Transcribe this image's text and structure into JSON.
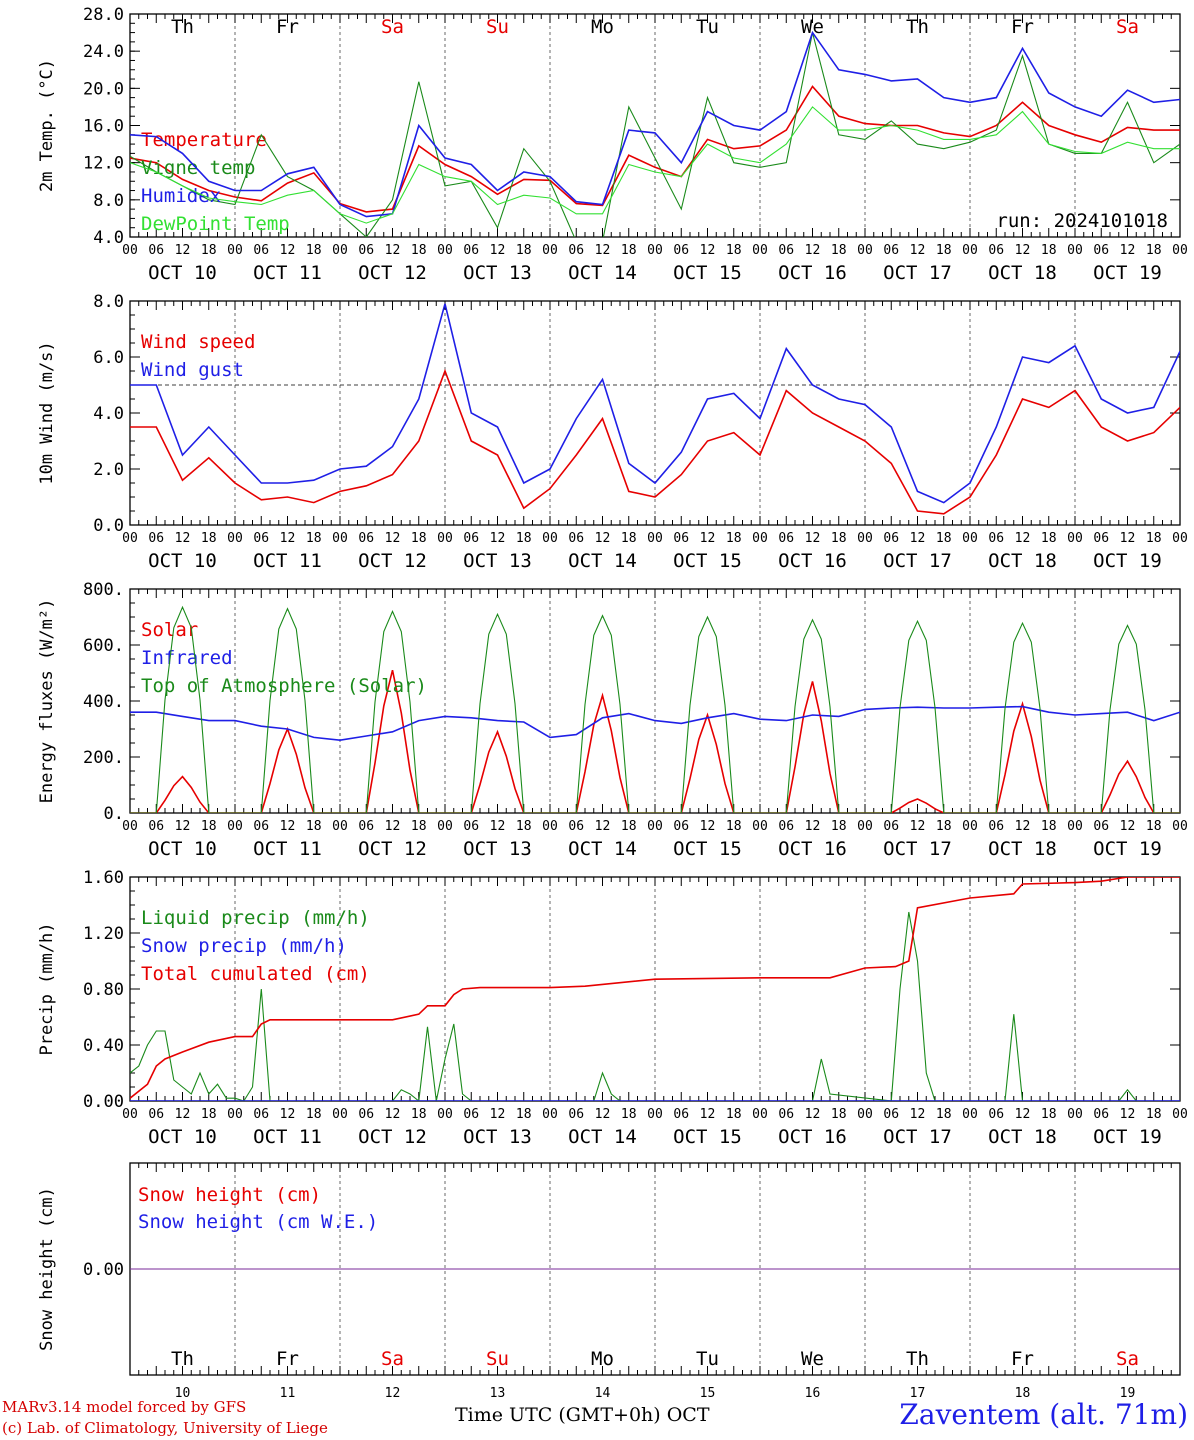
{
  "run_label": "run: 2024101018",
  "x_axis_title": "Time UTC (GMT+0h) OCT",
  "station": "Zaventem (alt. 71m)",
  "credits": [
    "MARv3.14 model forced by GFS",
    "(c) Lab. of Climatology, University of Liege"
  ],
  "hour_ticks": [
    "00",
    "06",
    "12",
    "18"
  ],
  "date_labels": [
    "OCT 10",
    "OCT 11",
    "OCT 12",
    "OCT 13",
    "OCT 14",
    "OCT 15",
    "OCT 16",
    "OCT 17",
    "OCT 18",
    "OCT 19"
  ],
  "day_numbers": [
    "10",
    "11",
    "12",
    "13",
    "14",
    "15",
    "16",
    "17",
    "18",
    "19"
  ],
  "weekdays": [
    {
      "label": "Th",
      "weekend": false
    },
    {
      "label": "Fr",
      "weekend": false
    },
    {
      "label": "Sa",
      "weekend": true
    },
    {
      "label": "Su",
      "weekend": true
    },
    {
      "label": "Mo",
      "weekend": false
    },
    {
      "label": "Tu",
      "weekend": false
    },
    {
      "label": "We",
      "weekend": false
    },
    {
      "label": "Th",
      "weekend": false
    },
    {
      "label": "Fr",
      "weekend": false
    },
    {
      "label": "Sa",
      "weekend": true
    }
  ],
  "colors": {
    "red": "#e60000",
    "dark_green": "#1a8a1a",
    "blue": "#1f1fe6",
    "light_green": "#33e033",
    "weekend": "#e60000",
    "snow_line": "#7a2a9a"
  },
  "chart_data": [
    {
      "type": "line",
      "ylabel": "2m Temp. (°C)",
      "ylim": [
        4.0,
        28.0
      ],
      "yticks": [
        "4.0",
        "8.0",
        "12.0",
        "16.0",
        "20.0",
        "24.0",
        "28.0"
      ],
      "x_unit": "hours since OCT 10 00 UTC",
      "xlim": [
        0,
        240
      ],
      "series": [
        {
          "name": "Temperature",
          "color": "#e60000",
          "x": [
            0,
            6,
            12,
            18,
            24,
            30,
            36,
            42,
            48,
            54,
            60,
            66,
            72,
            78,
            84,
            90,
            96,
            102,
            108,
            114,
            120,
            126,
            132,
            138,
            144,
            150,
            156,
            162,
            168,
            174,
            180,
            186,
            192,
            198,
            204,
            210,
            216,
            222,
            228,
            234,
            240
          ],
          "y": [
            12.5,
            12.0,
            10.2,
            9.0,
            8.3,
            7.9,
            9.8,
            10.9,
            7.6,
            6.7,
            7.0,
            13.8,
            11.8,
            10.5,
            8.6,
            10.2,
            10.1,
            7.6,
            7.4,
            12.8,
            11.5,
            10.5,
            14.5,
            13.5,
            13.8,
            15.5,
            20.2,
            17.0,
            16.2,
            16.0,
            16.0,
            15.2,
            14.8,
            16.0,
            18.5,
            16.0,
            15.0,
            14.2,
            15.8,
            15.5,
            15.5
          ]
        },
        {
          "name": "Vigne temp",
          "color": "#1a8a1a",
          "x": [
            0,
            6,
            12,
            18,
            24,
            30,
            36,
            42,
            48,
            54,
            60,
            66,
            72,
            78,
            84,
            90,
            96,
            102,
            108,
            114,
            120,
            126,
            132,
            138,
            144,
            150,
            156,
            162,
            168,
            174,
            180,
            186,
            192,
            198,
            204,
            210,
            216,
            222,
            228,
            234,
            240
          ],
          "y": [
            12.7,
            11.0,
            9.5,
            8.0,
            7.5,
            15.0,
            10.5,
            9.0,
            6.5,
            4.0,
            8.0,
            20.7,
            9.5,
            10.0,
            5.0,
            13.5,
            10.0,
            3.5,
            3.5,
            18.0,
            12.5,
            7.0,
            19.0,
            12.0,
            11.5,
            12.0,
            26.0,
            15.0,
            14.5,
            16.5,
            14.0,
            13.5,
            14.2,
            15.5,
            23.5,
            14.0,
            13.0,
            13.0,
            18.5,
            12.0,
            14.0
          ]
        },
        {
          "name": "Humidex",
          "color": "#1f1fe6",
          "x": [
            0,
            6,
            12,
            18,
            24,
            30,
            36,
            42,
            48,
            54,
            60,
            66,
            72,
            78,
            84,
            90,
            96,
            102,
            108,
            114,
            120,
            126,
            132,
            138,
            144,
            150,
            156,
            162,
            168,
            174,
            180,
            186,
            192,
            198,
            204,
            210,
            216,
            222,
            228,
            234,
            240
          ],
          "y": [
            15.0,
            14.8,
            13.0,
            10.0,
            9.0,
            9.0,
            10.8,
            11.5,
            7.5,
            6.2,
            6.5,
            16.0,
            12.5,
            11.8,
            9.0,
            11.0,
            10.5,
            7.8,
            7.5,
            15.5,
            15.2,
            12.0,
            17.5,
            16.0,
            15.5,
            17.5,
            26.0,
            22.0,
            21.5,
            20.8,
            21.0,
            19.0,
            18.5,
            19.0,
            24.3,
            19.5,
            18.0,
            17.0,
            19.8,
            18.5,
            18.8
          ]
        },
        {
          "name": "DewPoint Temp",
          "color": "#33e033",
          "x": [
            0,
            6,
            12,
            18,
            24,
            30,
            36,
            42,
            48,
            54,
            60,
            66,
            72,
            78,
            84,
            90,
            96,
            102,
            108,
            114,
            120,
            126,
            132,
            138,
            144,
            150,
            156,
            162,
            168,
            174,
            180,
            186,
            192,
            198,
            204,
            210,
            216,
            222,
            228,
            234,
            240
          ],
          "y": [
            12.0,
            11.0,
            9.5,
            8.2,
            7.8,
            7.5,
            8.5,
            9.0,
            6.5,
            5.5,
            6.5,
            11.8,
            10.5,
            10.0,
            7.5,
            8.5,
            8.2,
            6.5,
            6.5,
            11.8,
            11.0,
            10.5,
            14.0,
            12.5,
            12.0,
            14.0,
            18.0,
            15.5,
            15.5,
            16.0,
            15.5,
            14.5,
            14.5,
            15.0,
            17.5,
            14.0,
            13.2,
            13.0,
            14.2,
            13.5,
            13.5
          ]
        }
      ]
    },
    {
      "type": "line",
      "ylabel": "10m Wind (m/s)",
      "ylim": [
        0.0,
        8.0
      ],
      "yticks": [
        "0.0",
        "2.0",
        "4.0",
        "6.0",
        "8.0"
      ],
      "reference_line": 5.0,
      "x_unit": "hours since OCT 10 00 UTC",
      "xlim": [
        0,
        240
      ],
      "series": [
        {
          "name": "Wind speed",
          "color": "#e60000",
          "x": [
            0,
            6,
            12,
            18,
            24,
            30,
            36,
            42,
            48,
            54,
            60,
            66,
            72,
            78,
            84,
            90,
            96,
            102,
            108,
            114,
            120,
            126,
            132,
            138,
            144,
            150,
            156,
            162,
            168,
            174,
            180,
            186,
            192,
            198,
            204,
            210,
            216,
            222,
            228,
            234,
            240
          ],
          "y": [
            3.5,
            3.5,
            1.6,
            2.4,
            1.5,
            0.9,
            1.0,
            0.8,
            1.2,
            1.4,
            1.8,
            3.0,
            5.5,
            3.0,
            2.5,
            0.6,
            1.3,
            2.5,
            3.8,
            1.2,
            1.0,
            1.8,
            3.0,
            3.3,
            2.5,
            4.8,
            4.0,
            3.5,
            3.0,
            2.2,
            0.5,
            0.4,
            1.0,
            2.5,
            4.5,
            4.2,
            4.8,
            3.5,
            3.0,
            3.3,
            4.2
          ]
        },
        {
          "name": "Wind gust",
          "color": "#1f1fe6",
          "x": [
            0,
            6,
            12,
            18,
            24,
            30,
            36,
            42,
            48,
            54,
            60,
            66,
            72,
            78,
            84,
            90,
            96,
            102,
            108,
            114,
            120,
            126,
            132,
            138,
            144,
            150,
            156,
            162,
            168,
            174,
            180,
            186,
            192,
            198,
            204,
            210,
            216,
            222,
            228,
            234,
            240
          ],
          "y": [
            5.0,
            5.0,
            2.5,
            3.5,
            2.5,
            1.5,
            1.5,
            1.6,
            2.0,
            2.1,
            2.8,
            4.5,
            7.9,
            4.0,
            3.5,
            1.5,
            2.0,
            3.8,
            5.2,
            2.2,
            1.5,
            2.6,
            4.5,
            4.7,
            3.8,
            6.3,
            5.0,
            4.5,
            4.3,
            3.5,
            1.2,
            0.8,
            1.5,
            3.5,
            6.0,
            5.8,
            6.4,
            4.5,
            4.0,
            4.2,
            6.2
          ]
        }
      ]
    },
    {
      "type": "line",
      "ylabel": "Energy fluxes (W/m²)",
      "ylim": [
        0,
        800
      ],
      "yticks": [
        "0.",
        "200.",
        "400.",
        "600.",
        "800."
      ],
      "x_unit": "hours since OCT 10 00 UTC",
      "xlim": [
        0,
        240
      ],
      "series": [
        {
          "name": "Solar",
          "color": "#e60000",
          "type": "diurnal",
          "daily_peak": [
            130,
            300,
            510,
            290,
            420,
            350,
            470,
            50,
            390,
            185
          ]
        },
        {
          "name": "Infrared",
          "color": "#1f1fe6",
          "x": [
            0,
            6,
            12,
            18,
            24,
            30,
            36,
            42,
            48,
            54,
            60,
            66,
            72,
            78,
            84,
            90,
            96,
            102,
            108,
            114,
            120,
            126,
            132,
            138,
            144,
            150,
            156,
            162,
            168,
            174,
            180,
            186,
            192,
            198,
            204,
            210,
            216,
            222,
            228,
            234,
            240
          ],
          "y": [
            360,
            360,
            345,
            330,
            330,
            310,
            300,
            270,
            260,
            275,
            290,
            330,
            345,
            340,
            330,
            325,
            270,
            280,
            340,
            355,
            330,
            320,
            340,
            355,
            335,
            330,
            350,
            345,
            370,
            375,
            378,
            375,
            375,
            378,
            380,
            360,
            350,
            355,
            360,
            330,
            360
          ]
        },
        {
          "name": "Top of Atmosphere (Solar)",
          "color": "#1a8a1a",
          "type": "diurnal",
          "daily_peak": [
            735,
            730,
            720,
            710,
            705,
            700,
            690,
            685,
            678,
            670
          ]
        }
      ]
    },
    {
      "type": "line",
      "ylabel": "Precip (mm/h)",
      "ylim": [
        0.0,
        1.6
      ],
      "yticks": [
        "0.00",
        "0.40",
        "0.80",
        "1.20",
        "1.60"
      ],
      "x_unit": "hours since OCT 10 00 UTC",
      "xlim": [
        0,
        240
      ],
      "series": [
        {
          "name": "Liquid precip (mm/h)",
          "color": "#1a8a1a",
          "x": [
            0,
            2,
            4,
            6,
            8,
            10,
            12,
            14,
            16,
            18,
            20,
            22,
            24,
            26,
            28,
            30,
            32,
            34,
            60,
            62,
            64,
            66,
            68,
            70,
            72,
            74,
            76,
            78,
            80,
            106,
            108,
            110,
            112,
            156,
            158,
            160,
            174,
            176,
            178,
            180,
            182,
            184,
            200,
            202,
            204,
            206,
            226,
            228,
            230,
            240
          ],
          "y": [
            0.2,
            0.25,
            0.4,
            0.5,
            0.5,
            0.15,
            0.1,
            0.05,
            0.2,
            0.05,
            0.12,
            0.02,
            0.02,
            0.0,
            0.1,
            0.8,
            0.0,
            0.0,
            0.0,
            0.08,
            0.05,
            0.0,
            0.53,
            0.0,
            0.3,
            0.55,
            0.05,
            0.0,
            0.0,
            0.0,
            0.2,
            0.05,
            0.0,
            0.0,
            0.3,
            0.05,
            0.0,
            0.8,
            1.35,
            1.0,
            0.2,
            0.0,
            0.0,
            0.62,
            0.0,
            0.0,
            0.0,
            0.08,
            0.0,
            0.0
          ]
        },
        {
          "name": "Snow precip (mm/h)",
          "color": "#1f1fe6",
          "x": [
            0,
            240
          ],
          "y": [
            0.0,
            0.0
          ]
        },
        {
          "name": "Total cumulated (cm)",
          "color": "#e60000",
          "x": [
            0,
            4,
            6,
            8,
            12,
            18,
            24,
            28,
            30,
            32,
            48,
            60,
            66,
            68,
            72,
            74,
            76,
            80,
            96,
            104,
            120,
            144,
            160,
            168,
            175,
            178,
            180,
            192,
            202,
            204,
            216,
            222,
            228,
            240
          ],
          "y": [
            0.02,
            0.12,
            0.25,
            0.3,
            0.35,
            0.42,
            0.46,
            0.46,
            0.55,
            0.58,
            0.58,
            0.58,
            0.62,
            0.68,
            0.68,
            0.76,
            0.8,
            0.81,
            0.81,
            0.82,
            0.87,
            0.88,
            0.88,
            0.95,
            0.96,
            1.0,
            1.38,
            1.45,
            1.48,
            1.55,
            1.56,
            1.57,
            1.6,
            1.6
          ]
        }
      ]
    },
    {
      "type": "line",
      "ylabel": "Snow height (cm)",
      "ytick_labels": [
        "0.00"
      ],
      "x_unit": "hours since OCT 10 00 UTC",
      "xlim": [
        0,
        240
      ],
      "series": [
        {
          "name": "Snow height (cm)",
          "color": "#e60000",
          "x": [
            0,
            240
          ],
          "y": [
            0.0,
            0.0
          ]
        },
        {
          "name": "Snow height (cm W.E.)",
          "color": "#1f1fe6",
          "x": [
            0,
            240
          ],
          "y": [
            0.0,
            0.0
          ]
        }
      ]
    }
  ]
}
